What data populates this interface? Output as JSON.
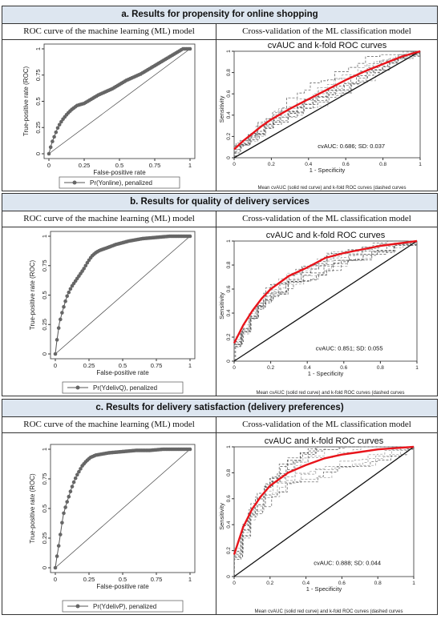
{
  "panels": [
    {
      "title": "a. Results for propensity for online shopping",
      "left_header": "ROC curve of the machine learning (ML) model",
      "right_header": "Cross-validation of the ML classification model",
      "roc": {
        "ylabel": "True-positive rate (ROC)",
        "xlabel": "False-positive rate",
        "xticks": [
          "0",
          "0.25",
          "0.5",
          "0.75",
          "1"
        ],
        "yticks": [
          "0",
          "0.25",
          "0.5",
          "0.75",
          "1"
        ],
        "legend": "Pr(Yonline), penalized"
      },
      "cv": {
        "title": "cvAUC and k-fold ROC curves",
        "ylabel": "Sensitivity",
        "xlabel": "1 - Specificity",
        "xticks": [
          "0",
          "0.2",
          "0.4",
          "0.6",
          "0.8",
          "1"
        ],
        "yticks": [
          "0",
          "0.2",
          "0.4",
          "0.6",
          "0.8",
          "1"
        ],
        "stat": "cvAUC: 0.686; SD: 0.037",
        "footnote": "Mean cvAUC (solid red curve) and k-fold ROC curves (dashed curves"
      }
    },
    {
      "title": "b. Results for quality of delivery services",
      "left_header": "ROC curve of the machine learning (ML) model",
      "right_header": "Cross-validation of the ML classification model",
      "roc": {
        "ylabel": "True-positive rate (ROC)",
        "xlabel": "False-positive rate",
        "xticks": [
          "0",
          "0.25",
          "0.5",
          "0.75",
          "1"
        ],
        "yticks": [
          "0",
          "0.25",
          "0.5",
          "0.75",
          "1"
        ],
        "legend": "Pr(YdelivQ), penalized"
      },
      "cv": {
        "title": "cvAUC and k-fold ROC curves",
        "ylabel": "Sensitivity",
        "xlabel": "1 - Specificity",
        "xticks": [
          "0",
          "0.2",
          "0.4",
          "0.6",
          "0.8",
          "1"
        ],
        "yticks": [
          "0",
          "0.2",
          "0.4",
          "0.6",
          "0.8",
          "1"
        ],
        "stat": "cvAUC: 0.851; SD: 0.055",
        "footnote": "Mean cvAUC (solid red curve) and k-fold ROC curves (dashed curves"
      }
    },
    {
      "title": "c. Results for delivery satisfaction (delivery preferences)",
      "left_header": "ROC curve of the machine learning (ML) model",
      "right_header": "Cross-validation of the ML classification model",
      "roc": {
        "ylabel": "True-positive rate (ROC)",
        "xlabel": "False-positive rate",
        "xticks": [
          "0",
          "0.25",
          "0.5",
          "0.75",
          "1"
        ],
        "yticks": [
          "0",
          "0.25",
          "0.5",
          "0.75",
          "1"
        ],
        "legend": "Pr(YdelivP), penalized"
      },
      "cv": {
        "title": "cvAUC and k-fold ROC curves",
        "ylabel": "Sensitivity",
        "xlabel": "1 - Specificity",
        "xticks": [
          "0",
          "0.2",
          "0.4",
          "0.6",
          "0.8",
          "1"
        ],
        "yticks": [
          "0",
          "0.2",
          "0.4",
          "0.6",
          "0.8",
          "1"
        ],
        "stat": "cvAUC: 0.888; SD: 0.044",
        "footnote": "Mean cvAUC (solid red curve) and k-fold ROC curves (dashed curves"
      }
    }
  ],
  "chart_data": [
    {
      "type": "line",
      "title": "",
      "xlabel": "False-positive rate",
      "ylabel": "True-positive rate (ROC)",
      "xlim": [
        0,
        1
      ],
      "ylim": [
        0,
        1
      ],
      "series": [
        {
          "name": "Pr(Yonline), penalized",
          "x": [
            0,
            0.02,
            0.04,
            0.06,
            0.08,
            0.1,
            0.13,
            0.16,
            0.2,
            0.25,
            0.3,
            0.35,
            0.4,
            0.45,
            0.5,
            0.55,
            0.6,
            0.65,
            0.7,
            0.75,
            0.8,
            0.85,
            0.9,
            0.95,
            1
          ],
          "y": [
            0,
            0.1,
            0.17,
            0.24,
            0.29,
            0.33,
            0.38,
            0.42,
            0.46,
            0.48,
            0.52,
            0.56,
            0.59,
            0.62,
            0.66,
            0.7,
            0.73,
            0.76,
            0.8,
            0.84,
            0.88,
            0.92,
            0.96,
            1,
            1
          ]
        }
      ]
    },
    {
      "type": "line",
      "title": "cvAUC and k-fold ROC curves",
      "xlabel": "1 - Specificity",
      "ylabel": "Sensitivity",
      "xlim": [
        0,
        1
      ],
      "ylim": [
        0,
        1
      ],
      "annotation": "cvAUC: 0.686; SD: 0.037",
      "series": [
        {
          "x": [
            0,
            0.05,
            0.1,
            0.15,
            0.2,
            0.3,
            0.4,
            0.5,
            0.6,
            0.7,
            0.8,
            0.9,
            1
          ],
          "y": [
            0.08,
            0.16,
            0.23,
            0.3,
            0.36,
            0.46,
            0.55,
            0.64,
            0.73,
            0.81,
            0.88,
            0.95,
            1
          ]
        }
      ]
    },
    {
      "type": "line",
      "title": "",
      "xlabel": "False-positive rate",
      "ylabel": "True-positive rate (ROC)",
      "xlim": [
        0,
        1
      ],
      "ylim": [
        0,
        1
      ],
      "series": [
        {
          "name": "Pr(YdelivQ), penalized",
          "x": [
            0,
            0.01,
            0.02,
            0.03,
            0.05,
            0.07,
            0.09,
            0.12,
            0.15,
            0.18,
            0.21,
            0.24,
            0.27,
            0.3,
            0.33,
            0.38,
            0.45,
            0.55,
            0.65,
            0.75,
            0.85,
            0.95,
            1
          ],
          "y": [
            0,
            0.1,
            0.18,
            0.26,
            0.35,
            0.43,
            0.5,
            0.57,
            0.62,
            0.67,
            0.72,
            0.78,
            0.83,
            0.86,
            0.88,
            0.9,
            0.93,
            0.96,
            0.98,
            0.99,
            1,
            1,
            1
          ]
        }
      ]
    },
    {
      "type": "line",
      "title": "cvAUC and k-fold ROC curves",
      "xlabel": "1 - Specificity",
      "ylabel": "Sensitivity",
      "xlim": [
        0,
        1
      ],
      "ylim": [
        0,
        1
      ],
      "annotation": "cvAUC: 0.851; SD: 0.055",
      "series": [
        {
          "x": [
            0,
            0.05,
            0.1,
            0.15,
            0.2,
            0.3,
            0.4,
            0.5,
            0.6,
            0.7,
            0.8,
            0.9,
            1
          ],
          "y": [
            0.15,
            0.3,
            0.42,
            0.52,
            0.6,
            0.71,
            0.78,
            0.86,
            0.9,
            0.93,
            0.96,
            0.98,
            1
          ]
        }
      ]
    },
    {
      "type": "line",
      "title": "",
      "xlabel": "False-positive rate",
      "ylabel": "True-positive rate (ROC)",
      "xlim": [
        0,
        1
      ],
      "ylim": [
        0,
        1
      ],
      "series": [
        {
          "name": "Pr(YdelivP), penalized",
          "x": [
            0,
            0.01,
            0.02,
            0.03,
            0.04,
            0.05,
            0.06,
            0.08,
            0.1,
            0.12,
            0.14,
            0.16,
            0.18,
            0.2,
            0.23,
            0.26,
            0.3,
            0.4,
            0.5,
            0.6,
            0.7,
            0.8,
            0.9,
            1
          ],
          "y": [
            0,
            0.08,
            0.15,
            0.22,
            0.3,
            0.38,
            0.45,
            0.53,
            0.6,
            0.67,
            0.73,
            0.78,
            0.82,
            0.86,
            0.9,
            0.93,
            0.95,
            0.97,
            0.98,
            0.99,
            0.99,
            1,
            1,
            1
          ]
        }
      ]
    },
    {
      "type": "line",
      "title": "cvAUC and k-fold ROC curves",
      "xlabel": "1 - Specificity",
      "ylabel": "Sensitivity",
      "xlim": [
        0,
        1
      ],
      "ylim": [
        0,
        1
      ],
      "annotation": "cvAUC: 0.888; SD: 0.044",
      "series": [
        {
          "x": [
            0,
            0.05,
            0.1,
            0.15,
            0.2,
            0.3,
            0.4,
            0.5,
            0.6,
            0.7,
            0.8,
            0.9,
            1
          ],
          "y": [
            0.17,
            0.38,
            0.52,
            0.62,
            0.7,
            0.8,
            0.86,
            0.91,
            0.94,
            0.96,
            0.98,
            0.99,
            1
          ]
        }
      ]
    }
  ]
}
